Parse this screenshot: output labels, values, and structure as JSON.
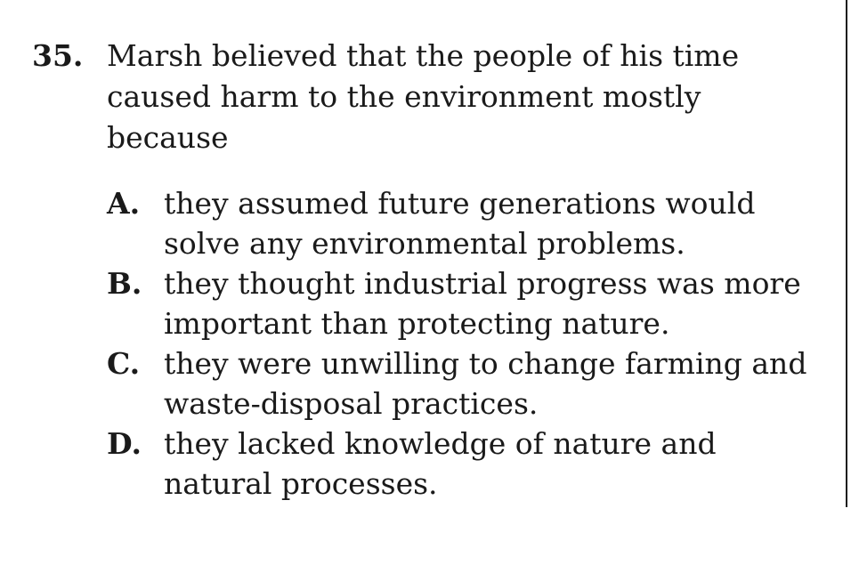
{
  "question": {
    "number": "35.",
    "stem": "Marsh believed that the people of his time caused harm to the environment mostly because",
    "choices": [
      {
        "letter": "A.",
        "text": "they assumed future generations would solve any environmental problems."
      },
      {
        "letter": "B.",
        "text": "they thought industrial progress was more important than protecting nature."
      },
      {
        "letter": "C.",
        "text": "they were unwilling to change farming and waste-disposal practices."
      },
      {
        "letter": "D.",
        "text": "they lacked knowledge of nature and natural processes."
      }
    ]
  }
}
